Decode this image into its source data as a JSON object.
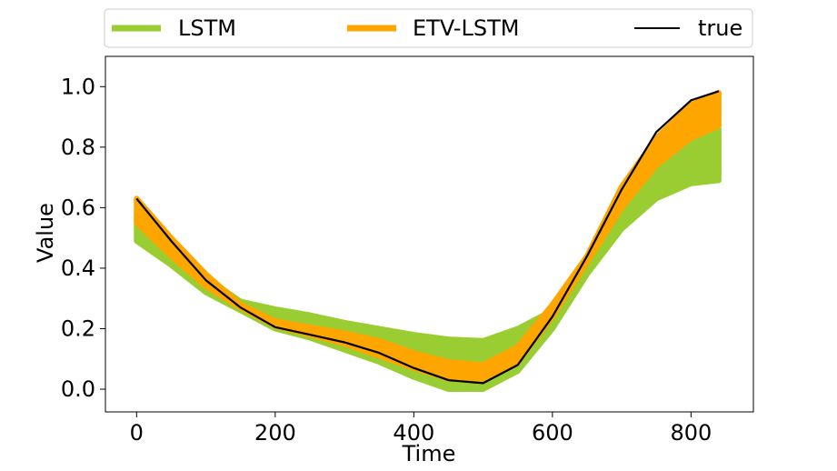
{
  "chart_data": {
    "type": "line",
    "xlabel": "Time",
    "ylabel": "Value",
    "xlim": [
      -45,
      890
    ],
    "ylim": [
      -0.075,
      1.1
    ],
    "xticks": [
      0,
      200,
      400,
      600,
      800
    ],
    "xtick_labels": [
      "0",
      "200",
      "400",
      "600",
      "800"
    ],
    "yticks": [
      0.0,
      0.2,
      0.4,
      0.6,
      0.8,
      1.0
    ],
    "ytick_labels": [
      "0.0",
      "0.2",
      "0.4",
      "0.6",
      "0.8",
      "1.0"
    ],
    "grid": false,
    "legend_position": "top",
    "colors": {
      "lstm": "#9acd32",
      "etv_lstm": "#ffa500",
      "true": "#000000"
    },
    "x": [
      0,
      50,
      100,
      150,
      200,
      250,
      300,
      350,
      400,
      450,
      500,
      550,
      600,
      650,
      700,
      750,
      800,
      840
    ],
    "series": [
      {
        "name": "LSTM",
        "kind": "band",
        "lower": [
          0.49,
          0.41,
          0.32,
          0.26,
          0.2,
          0.17,
          0.13,
          0.09,
          0.04,
          0.0,
          0.0,
          0.06,
          0.2,
          0.38,
          0.53,
          0.63,
          0.68,
          0.69
        ],
        "upper": [
          0.58,
          0.47,
          0.37,
          0.29,
          0.265,
          0.245,
          0.22,
          0.2,
          0.18,
          0.165,
          0.16,
          0.2,
          0.26,
          0.4,
          0.59,
          0.72,
          0.82,
          0.86
        ]
      },
      {
        "name": "ETV-LSTM",
        "kind": "band",
        "lower": [
          0.55,
          0.44,
          0.34,
          0.27,
          0.21,
          0.18,
          0.15,
          0.11,
          0.07,
          0.035,
          0.035,
          0.09,
          0.24,
          0.42,
          0.6,
          0.74,
          0.83,
          0.87
        ],
        "upper": [
          0.63,
          0.5,
          0.38,
          0.28,
          0.225,
          0.205,
          0.185,
          0.16,
          0.12,
          0.09,
          0.08,
          0.14,
          0.28,
          0.44,
          0.67,
          0.83,
          0.94,
          0.98
        ]
      },
      {
        "name": "true",
        "kind": "line",
        "values": [
          0.63,
          0.49,
          0.36,
          0.27,
          0.205,
          0.18,
          0.155,
          0.12,
          0.07,
          0.03,
          0.02,
          0.08,
          0.24,
          0.44,
          0.66,
          0.85,
          0.955,
          0.985
        ]
      }
    ]
  }
}
